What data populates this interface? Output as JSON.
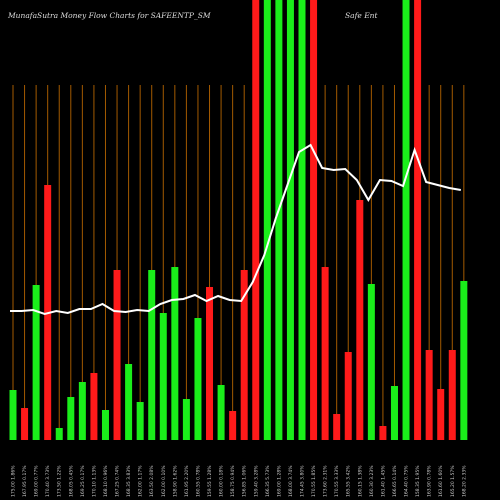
{
  "chart_data": {
    "type": "bar",
    "title": "MunafaSutra  Money Flow  Charts for SAFEENTP_SM",
    "subtitle": "Safe Ent",
    "categories": [
      "175.00 1.86%",
      "167.95 0.17%",
      "169.00 0.77%",
      "170.40 3.73%",
      "173.50 1.22%",
      "168.05 0.45%",
      "169.25 0.17%",
      "170.10 1.13%",
      "168.10 0.96%",
      "167.25 0.74%",
      "168.35 3.83%",
      "162.00 1.17%",
      "163.50 2.08%",
      "162.00 0.10%",
      "158.90 1.62%",
      "161.95 2.20%",
      "160.55 0.78%",
      "159.55 1.28%",
      "160.00 0.18%",
      "158.75 0.94%",
      "156.85 1.06%",
      "159.40 3.28%",
      "166.35 5.73%",
      "169.00 1.28%",
      "168.00 3.74%",
      "174.45 3.80%",
      "170.55 1.85%",
      "173.60 2.31%",
      "170.55 3.33%",
      "165.55 3.42%",
      "160.15 1.38%",
      "160.30 3.23%",
      "161.40 1.45%",
      "166.65 0.14%",
      "164.40 0.75%",
      "158.35 1.95%",
      "163.90 0.78%",
      "161.60 1.60%",
      "165.20 1.57%",
      "168.20 2.33%"
    ],
    "series": [
      {
        "name": "Money Flow",
        "values": [
          50,
          32,
          155,
          255,
          12,
          43,
          58,
          67,
          30,
          170,
          76,
          38,
          170,
          127,
          173,
          41,
          122,
          153,
          55,
          29,
          170,
          440,
          440,
          440,
          440,
          440,
          440,
          173,
          26,
          88,
          240,
          156,
          14,
          54,
          440,
          440,
          90,
          51,
          90,
          159
        ],
        "colors": [
          "#1aee1a",
          "#ff1a1a",
          "#1aee1a",
          "#ff1a1a",
          "#1aee1a",
          "#1aee1a",
          "#1aee1a",
          "#ff1a1a",
          "#1aee1a",
          "#ff1a1a",
          "#1aee1a",
          "#1aee1a",
          "#1aee1a",
          "#1aee1a",
          "#1aee1a",
          "#1aee1a",
          "#1aee1a",
          "#ff1a1a",
          "#1aee1a",
          "#ff1a1a",
          "#ff1a1a",
          "#ff1a1a",
          "#1aee1a",
          "#1aee1a",
          "#1aee1a",
          "#1aee1a",
          "#ff1a1a",
          "#ff1a1a",
          "#ff1a1a",
          "#ff1a1a",
          "#ff1a1a",
          "#1aee1a",
          "#ff1a1a",
          "#1aee1a",
          "#1aee1a",
          "#ff1a1a",
          "#ff1a1a",
          "#ff1a1a",
          "#ff1a1a",
          "#1aee1a"
        ]
      },
      {
        "name": "Price",
        "type": "line",
        "color": "#ffffff",
        "values": [
          129,
          129,
          130,
          126,
          129,
          127,
          131,
          131,
          136,
          129,
          128,
          130,
          129,
          136,
          140,
          141,
          145,
          139,
          144,
          140,
          139,
          158,
          185,
          222,
          255,
          288,
          295,
          272,
          270,
          271,
          260,
          240,
          260,
          259,
          254,
          290,
          258,
          255,
          252,
          250
        ]
      }
    ],
    "ylim": [
      0,
      440
    ],
    "gridline_color": "#a35a00"
  }
}
